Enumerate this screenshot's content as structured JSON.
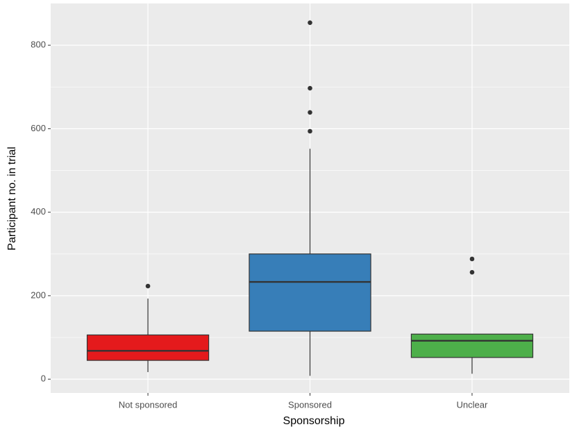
{
  "chart_data": {
    "type": "boxplot",
    "x_label": "Sponsorship",
    "y_label": "Participant no. in trial",
    "categories": [
      "Not sponsored",
      "Sponsored",
      "Unclear"
    ],
    "boxes": [
      {
        "color": "#e41a1c",
        "low": 17,
        "q1": 45,
        "median": 68,
        "q3": 106,
        "high": 193,
        "outliers": [
          223
        ]
      },
      {
        "color": "#377eb8",
        "low": 8,
        "q1": 115,
        "median": 233,
        "q3": 300,
        "high": 552,
        "outliers": [
          854,
          697,
          639,
          594
        ]
      },
      {
        "color": "#4daf4a",
        "low": 13,
        "q1": 52,
        "median": 92,
        "q3": 108,
        "high": 108,
        "outliers": [
          288,
          256
        ]
      }
    ],
    "ylim": [
      -33,
      900
    ],
    "yticks": [
      0,
      200,
      400,
      600,
      800
    ],
    "minor_yticks": [
      100,
      300,
      500,
      700
    ],
    "grid": true
  }
}
